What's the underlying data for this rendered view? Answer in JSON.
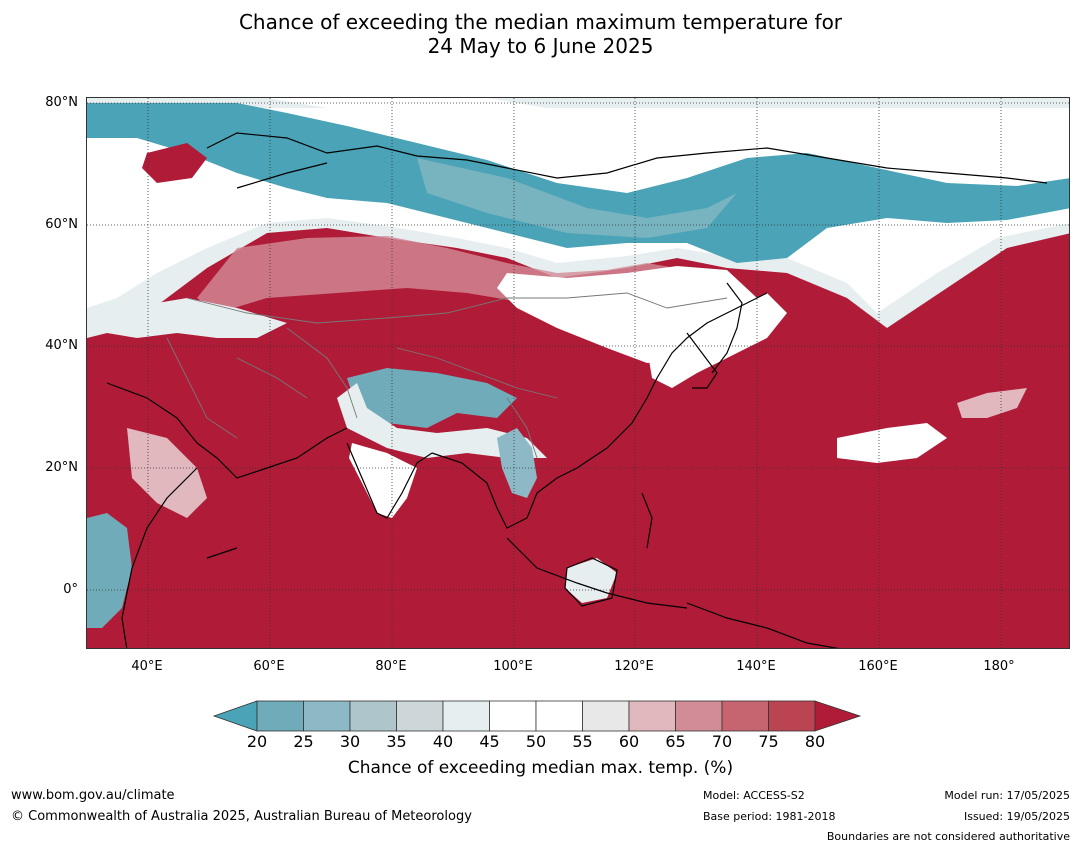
{
  "title": {
    "line1": "Chance of exceeding the median maximum temperature for",
    "line2": "24 May to 6 June 2025"
  },
  "map": {
    "lat_labels": [
      "80°N",
      "60°N",
      "40°N",
      "20°N",
      "0°"
    ],
    "lon_labels": [
      "40°E",
      "60°E",
      "80°E",
      "100°E",
      "120°E",
      "140°E",
      "160°E",
      "180°"
    ],
    "colors": {
      "below": "#4aa3b6",
      "neutral": "#ffffff",
      "above": "#b01c38",
      "land_outline": "#000000",
      "border_outline": "#777777"
    }
  },
  "colorbar": {
    "ticks": [
      "20",
      "25",
      "30",
      "35",
      "40",
      "45",
      "50",
      "55",
      "60",
      "65",
      "70",
      "75",
      "80"
    ],
    "colors": [
      "#4aa3b6",
      "#6fabb8",
      "#8cb9c5",
      "#adc5cb",
      "#cdd7da",
      "#e7eef0",
      "#ffffff",
      "#ffffff",
      "#e8e8e8",
      "#e0b8be",
      "#d28c98",
      "#c6646f",
      "#bb4452",
      "#b01c38"
    ],
    "label": "Chance of exceeding median max. temp. (%)"
  },
  "footer": {
    "website": "www.bom.gov.au/climate",
    "copyright": "© Commonwealth of Australia 2025, Australian Bureau of Meteorology",
    "model": "Model: ACCESS-S2",
    "base_period": "Base period: 1981-2018",
    "model_run": "Model run: 17/05/2025",
    "issued": "Issued: 19/05/2025",
    "boundaries": "Boundaries are not considered authoritative"
  }
}
